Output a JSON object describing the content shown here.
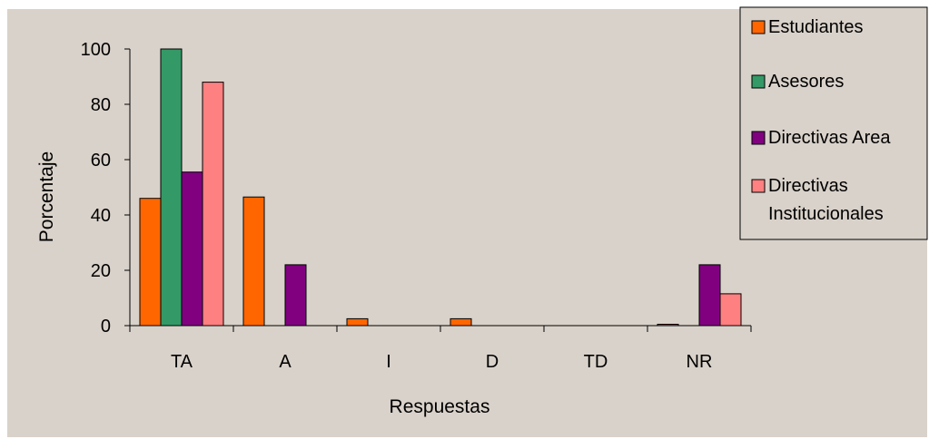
{
  "chart_data": {
    "type": "bar",
    "title": "",
    "xlabel": "Respuestas",
    "ylabel": "Porcentaje",
    "ylim": [
      0,
      100
    ],
    "yticks": [
      0,
      20,
      40,
      60,
      80,
      100
    ],
    "categories": [
      "TA",
      "A",
      "I",
      "D",
      "TD",
      "NR"
    ],
    "grid": false,
    "legend_position": "top-right",
    "series": [
      {
        "name": "Estudiantes",
        "color": "#FF6600",
        "values": [
          46,
          46.5,
          2.5,
          2.5,
          0,
          0.5
        ]
      },
      {
        "name": "Asesores",
        "color": "#339966",
        "values": [
          100,
          0,
          0,
          0,
          0,
          0
        ]
      },
      {
        "name": "Directivas Area",
        "color": "#800080",
        "values": [
          55.5,
          22,
          0,
          0,
          0,
          22
        ]
      },
      {
        "name": "Directivas Institucionales",
        "legend_lines": [
          "Directivas",
          "Institucionales"
        ],
        "color": "#FF8080",
        "values": [
          88,
          0,
          0,
          0,
          0,
          11.5
        ]
      }
    ],
    "plot_background": "#D9D2CA"
  }
}
